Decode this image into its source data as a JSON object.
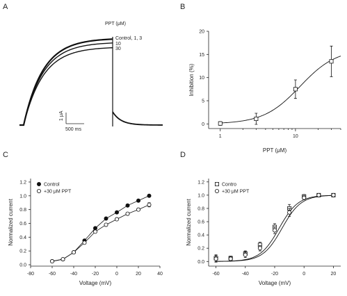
{
  "panels": {
    "A": {
      "label": "A",
      "title": "PPT (μM)",
      "trace_labels": [
        "Control, 1, 3",
        "10",
        "30"
      ],
      "scale_current": "1 μA",
      "scale_time": "500 ms"
    },
    "B": {
      "label": "B"
    },
    "C": {
      "label": "C"
    },
    "D": {
      "label": "D"
    }
  },
  "chart_data": [
    {
      "id": "A",
      "type": "line",
      "title": "PPT (μM)",
      "series": [
        {
          "name": "Control, 1, 3",
          "relative_steady_current": 1.0
        },
        {
          "name": "10",
          "relative_steady_current": 0.955
        },
        {
          "name": "30",
          "relative_steady_current": 0.9
        }
      ]
    },
    {
      "id": "B",
      "type": "scatter",
      "xlabel": "PPT (μM)",
      "ylabel": "Inhibition (%)",
      "xscale": "log",
      "xlim": [
        0.7,
        40
      ],
      "ylim": [
        -1,
        20
      ],
      "xticks": [
        "1",
        "10"
      ],
      "yticks": [
        "0",
        "5",
        "10",
        "15",
        "20"
      ],
      "points": [
        {
          "x": 1,
          "y": 0.1,
          "err": 0.4
        },
        {
          "x": 3,
          "y": 1.1,
          "err": 1.2
        },
        {
          "x": 10,
          "y": 7.5,
          "err": 2.0
        },
        {
          "x": 30,
          "y": 13.5,
          "err": 3.3
        }
      ],
      "fit": {
        "type": "hill",
        "max": 16.2,
        "ic50": 11.5,
        "n": 1.8
      }
    },
    {
      "id": "C",
      "type": "line",
      "xlabel": "Voltage (mV)",
      "ylabel": "Normalized current",
      "xlim": [
        -80,
        40
      ],
      "ylim": [
        -0.02,
        1.25
      ],
      "xticks": [
        "-80",
        "-60",
        "-40",
        "-20",
        "0",
        "20",
        "40"
      ],
      "yticks": [
        "0.0",
        "0.2",
        "0.4",
        "0.6",
        "0.8",
        "1.0",
        "1.2"
      ],
      "legend_position": "top-left",
      "x": [
        -60,
        -50,
        -40,
        -30,
        -20,
        -10,
        0,
        10,
        20,
        30
      ],
      "series": [
        {
          "name": "Control",
          "marker": "filled-circle",
          "values": [
            0.05,
            0.08,
            0.18,
            0.35,
            0.53,
            0.67,
            0.76,
            0.86,
            0.93,
            1.0
          ],
          "err": [
            0,
            0,
            0,
            0,
            0,
            0,
            0,
            0,
            0,
            0
          ]
        },
        {
          "name": "+30 μM PPT",
          "marker": "open-circle",
          "values": [
            0.05,
            0.08,
            0.18,
            0.32,
            0.48,
            0.58,
            0.66,
            0.74,
            0.8,
            0.87
          ],
          "err": [
            0,
            0,
            0,
            0.02,
            0.02,
            0.02,
            0.02,
            0.02,
            0.02,
            0.03
          ]
        }
      ]
    },
    {
      "id": "D",
      "type": "line",
      "xlabel": "Voltage (mV)",
      "ylabel": "Normalized current",
      "xlim": [
        -65,
        25
      ],
      "ylim": [
        -0.07,
        1.25
      ],
      "xticks": [
        "-60",
        "-40",
        "-20",
        "0",
        "20"
      ],
      "yticks": [
        "0.0",
        "0.2",
        "0.4",
        "0.6",
        "0.8",
        "1.0",
        "1.2"
      ],
      "legend_position": "top-left",
      "x": [
        -60,
        -50,
        -40,
        -30,
        -20,
        -10,
        0,
        10,
        20
      ],
      "series": [
        {
          "name": "Contro",
          "marker": "open-square",
          "values": [
            0.05,
            0.05,
            0.12,
            0.25,
            0.52,
            0.8,
            0.98,
            1.0,
            1.0
          ],
          "err": [
            0.05,
            0.03,
            0.04,
            0.04,
            0.05,
            0.06,
            0.03,
            0.02,
            0.02
          ]
        },
        {
          "name": "+30 μM PPT",
          "marker": "open-circle",
          "values": [
            0.04,
            0.04,
            0.1,
            0.2,
            0.47,
            0.74,
            0.96,
            1.0,
            1.0
          ],
          "err": [
            0.05,
            0.03,
            0.04,
            0.04,
            0.05,
            0.06,
            0.03,
            0.02,
            0.02
          ]
        }
      ],
      "fit": {
        "type": "boltzmann",
        "control_v_half": -17,
        "ppt_v_half": -15,
        "slope": 6.5
      }
    }
  ]
}
